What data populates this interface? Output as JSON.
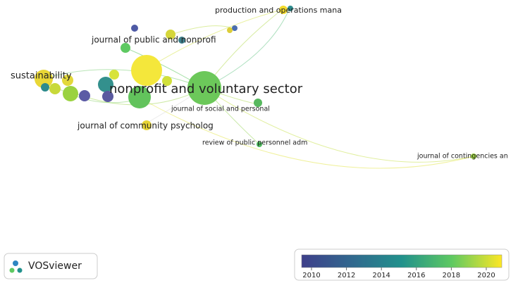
{
  "network": {
    "nodes": [
      {
        "label": "production and operations mana"
      },
      {
        "label": "journal of public and nonprofi"
      },
      {
        "label": "sustainability"
      },
      {
        "label": "nonprofit and voluntary sector"
      },
      {
        "label": "journal of social and personal"
      },
      {
        "label": "journal of community psycholog"
      },
      {
        "label": "review of public personnel adm"
      },
      {
        "label": "journal of contingencies an"
      }
    ]
  },
  "logo": {
    "text": "VOSviewer"
  },
  "legend": {
    "ticks": [
      2010,
      2012,
      2014,
      2016,
      2018,
      2020
    ]
  }
}
